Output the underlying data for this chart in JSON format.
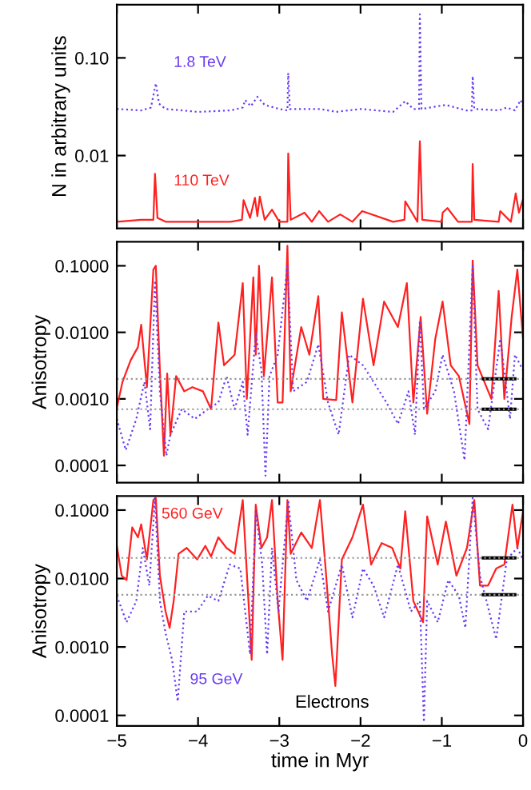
{
  "chart_data": [
    {
      "type": "line",
      "ylabel": "N in arbitrary units",
      "log": "y",
      "xlim": [
        -5,
        0
      ],
      "xticks": [
        -5,
        -4,
        -3,
        -2,
        -1,
        0
      ],
      "ylim": [
        0.0018,
        0.35
      ],
      "yticks": [
        {
          "value": 0.1,
          "label": "0.10"
        },
        {
          "value": 0.01,
          "label": "0.01"
        }
      ],
      "tick_labels": "y",
      "grid": false,
      "series": [
        {
          "name": "1.8 TeV",
          "color": "#6a3cf0",
          "line_style": "dotted",
          "x": [
            -5.0,
            -4.7,
            -4.58,
            -4.52,
            -4.48,
            -4.4,
            -4.0,
            -3.6,
            -3.45,
            -3.42,
            -3.35,
            -3.27,
            -3.18,
            -3.0,
            -2.9,
            -2.89,
            -2.87,
            -2.5,
            -2.3,
            -2.0,
            -1.6,
            -1.45,
            -1.35,
            -1.28,
            -1.27,
            -1.25,
            -0.95,
            -0.7,
            -0.63,
            -0.62,
            -0.6,
            -0.3,
            -0.2,
            -0.1,
            -0.03,
            0.0
          ],
          "values": [
            0.03,
            0.029,
            0.031,
            0.055,
            0.034,
            0.03,
            0.028,
            0.029,
            0.031,
            0.037,
            0.032,
            0.04,
            0.033,
            0.03,
            0.029,
            0.07,
            0.03,
            0.03,
            0.028,
            0.03,
            0.028,
            0.036,
            0.03,
            0.03,
            0.28,
            0.03,
            0.033,
            0.029,
            0.029,
            0.065,
            0.03,
            0.029,
            0.031,
            0.029,
            0.037,
            0.032
          ]
        },
        {
          "name": "110 TeV",
          "color": "#ff2020",
          "line_style": "solid",
          "x": [
            -5.0,
            -4.7,
            -4.55,
            -4.53,
            -4.5,
            -4.4,
            -4.0,
            -3.6,
            -3.46,
            -3.44,
            -3.36,
            -3.3,
            -3.27,
            -3.24,
            -3.18,
            -3.09,
            -3.0,
            -2.9,
            -2.89,
            -2.86,
            -2.69,
            -2.6,
            -2.51,
            -2.4,
            -2.25,
            -2.1,
            -1.98,
            -1.6,
            -1.46,
            -1.45,
            -1.3,
            -1.27,
            -1.24,
            -1.0,
            -0.99,
            -0.93,
            -0.8,
            -0.63,
            -0.62,
            -0.6,
            -0.3,
            -0.28,
            -0.15,
            -0.09,
            -0.05,
            0.0
          ],
          "values": [
            0.0021,
            0.0022,
            0.0022,
            0.0065,
            0.0023,
            0.0021,
            0.0021,
            0.0021,
            0.0022,
            0.0035,
            0.0023,
            0.0037,
            0.0024,
            0.0038,
            0.0022,
            0.0028,
            0.0021,
            0.0021,
            0.0105,
            0.0022,
            0.0026,
            0.0021,
            0.0027,
            0.0021,
            0.0025,
            0.0021,
            0.0027,
            0.0021,
            0.0022,
            0.0034,
            0.0021,
            0.014,
            0.0022,
            0.0021,
            0.0026,
            0.0029,
            0.0021,
            0.0021,
            0.0082,
            0.0022,
            0.0021,
            0.0027,
            0.0021,
            0.0041,
            0.0026,
            0.0036
          ]
        }
      ]
    },
    {
      "type": "line",
      "ylabel": "Anisotropy",
      "log": "y",
      "xlim": [
        -5,
        0
      ],
      "xticks": [
        -5,
        -4,
        -3,
        -2,
        -1,
        0
      ],
      "ylim": [
        5.5e-05,
        0.23
      ],
      "yticks": [
        {
          "value": 0.1,
          "label": "0.1000"
        },
        {
          "value": 0.01,
          "label": "0.0100"
        },
        {
          "value": 0.001,
          "label": "0.0010"
        },
        {
          "value": 0.0001,
          "label": "0.0001"
        }
      ],
      "tick_labels": "y",
      "grid": false,
      "ref_lines": [
        {
          "axis": "y",
          "value": 0.002,
          "color": "#999999",
          "line_style": "dotted"
        },
        {
          "axis": "y",
          "value": 0.0007,
          "color": "#999999",
          "line_style": "dotted"
        }
      ],
      "series": [
        {
          "color": "#ff2020",
          "line_style": "solid",
          "x": [
            -5.0,
            -4.93,
            -4.83,
            -4.74,
            -4.7,
            -4.63,
            -4.55,
            -4.52,
            -4.47,
            -4.42,
            -4.38,
            -4.34,
            -4.27,
            -4.17,
            -4.07,
            -3.94,
            -3.84,
            -3.75,
            -3.68,
            -3.55,
            -3.45,
            -3.4,
            -3.32,
            -3.29,
            -3.25,
            -3.19,
            -3.09,
            -3.02,
            -2.96,
            -2.9,
            -2.86,
            -2.73,
            -2.63,
            -2.52,
            -2.46,
            -2.3,
            -2.23,
            -2.1,
            -1.97,
            -1.84,
            -1.71,
            -1.54,
            -1.43,
            -1.35,
            -1.26,
            -1.18,
            -1.08,
            -0.99,
            -0.89,
            -0.79,
            -0.66,
            -0.62,
            -0.56,
            -0.39,
            -0.3,
            -0.23,
            -0.14,
            -0.07,
            0.0
          ],
          "values": [
            0.00073,
            0.0018,
            0.0038,
            0.006,
            0.013,
            0.0015,
            0.088,
            0.1,
            0.0027,
            0.00014,
            0.0024,
            0.00029,
            0.0022,
            0.0013,
            0.0015,
            0.0013,
            0.0007,
            0.014,
            0.0032,
            0.0046,
            0.055,
            0.001,
            0.067,
            0.0046,
            0.1,
            0.0022,
            0.067,
            0.00088,
            0.00088,
            0.2,
            0.0013,
            0.012,
            0.0046,
            0.035,
            0.001,
            0.00096,
            0.02,
            0.00088,
            0.032,
            0.0032,
            0.029,
            0.012,
            0.055,
            0.00088,
            0.017,
            0.0006,
            0.008,
            0.029,
            0.0032,
            0.0022,
            0.00042,
            0.12,
            0.0032,
            0.001,
            0.042,
            0.001,
            0.017,
            0.088,
            0.008
          ]
        },
        {
          "color": "#6a3cf0",
          "line_style": "dotted",
          "x": [
            -5.0,
            -4.89,
            -4.76,
            -4.66,
            -4.59,
            -4.53,
            -4.47,
            -4.39,
            -4.34,
            -4.2,
            -4.04,
            -3.88,
            -3.75,
            -3.65,
            -3.55,
            -3.45,
            -3.39,
            -3.29,
            -3.22,
            -3.17,
            -3.12,
            -3.02,
            -2.9,
            -2.83,
            -2.66,
            -2.52,
            -2.4,
            -2.27,
            -2.14,
            -1.97,
            -1.84,
            -1.68,
            -1.54,
            -1.41,
            -1.33,
            -1.27,
            -1.22,
            -1.08,
            -0.99,
            -0.85,
            -0.72,
            -0.62,
            -0.56,
            -0.43,
            -0.28,
            -0.16,
            -0.1,
            0.0
          ],
          "values": [
            0.0005,
            0.00017,
            0.0005,
            0.0018,
            0.00035,
            0.06,
            0.0013,
            0.00014,
            0.00029,
            0.0007,
            0.0005,
            0.0007,
            0.00088,
            0.0022,
            0.0007,
            0.0018,
            0.00029,
            0.0096,
            0.0027,
            7e-05,
            0.0022,
            0.0046,
            0.1,
            0.0013,
            0.0018,
            0.0066,
            0.00088,
            0.00029,
            0.0046,
            0.0032,
            0.0018,
            0.00088,
            0.00042,
            0.0013,
            0.00029,
            0.015,
            0.0007,
            0.0013,
            0.0046,
            0.0013,
            0.00012,
            0.1,
            0.0007,
            0.00035,
            0.008,
            0.0005,
            0.0046,
            0.0027
          ]
        },
        {
          "color": "#000000",
          "line_style": "solid",
          "x": [
            -0.49,
            -0.1
          ],
          "values": [
            0.002,
            0.002
          ]
        },
        {
          "color": "#000000",
          "line_style": "solid",
          "x": [
            -0.49,
            -0.1
          ],
          "values": [
            0.0007,
            0.0007
          ]
        }
      ]
    },
    {
      "type": "line",
      "ylabel": "Anisotropy",
      "xlabel": "time in Myr",
      "log": "y",
      "xlim": [
        -5,
        0
      ],
      "xticks": [
        {
          "value": -5,
          "label": "−5"
        },
        {
          "value": -4,
          "label": "−4"
        },
        {
          "value": -3,
          "label": "−3"
        },
        {
          "value": -2,
          "label": "−2"
        },
        {
          "value": -1,
          "label": "−1"
        },
        0
      ],
      "ylim": [
        7e-05,
        0.16
      ],
      "yticks": [
        {
          "value": 0.1,
          "label": "0.1000"
        },
        {
          "value": 0.01,
          "label": "0.0100"
        },
        {
          "value": 0.001,
          "label": "0.0010"
        },
        {
          "value": 0.0001,
          "label": "0.0001"
        }
      ],
      "grid": false,
      "annotations": [
        "Electrons"
      ],
      "ref_lines": [
        {
          "axis": "y",
          "value": 0.02,
          "color": "#999999",
          "line_style": "dotted"
        },
        {
          "axis": "y",
          "value": 0.0058,
          "color": "#999999",
          "line_style": "dotted"
        }
      ],
      "series": [
        {
          "name": "560 GeV",
          "color": "#ff2020",
          "line_style": "solid",
          "x": [
            -5.0,
            -4.94,
            -4.88,
            -4.81,
            -4.74,
            -4.7,
            -4.63,
            -4.55,
            -4.52,
            -4.47,
            -4.4,
            -4.35,
            -4.3,
            -4.24,
            -4.14,
            -4.01,
            -3.91,
            -3.84,
            -3.75,
            -3.65,
            -3.55,
            -3.45,
            -3.38,
            -3.34,
            -3.29,
            -3.22,
            -3.15,
            -3.09,
            -3.02,
            -2.96,
            -2.9,
            -2.86,
            -2.73,
            -2.6,
            -2.5,
            -2.43,
            -2.35,
            -2.31,
            -2.23,
            -2.1,
            -1.97,
            -1.87,
            -1.74,
            -1.61,
            -1.51,
            -1.45,
            -1.35,
            -1.23,
            -1.18,
            -1.05,
            -0.95,
            -0.82,
            -0.69,
            -0.6,
            -0.53,
            -0.43,
            -0.33,
            -0.23,
            -0.13,
            -0.07,
            0.0
          ],
          "values": [
            0.03,
            0.011,
            0.0095,
            0.056,
            0.04,
            0.062,
            0.019,
            0.14,
            0.15,
            0.011,
            0.0033,
            0.0019,
            0.0047,
            0.023,
            0.028,
            0.019,
            0.03,
            0.021,
            0.04,
            0.028,
            0.023,
            0.14,
            0.0047,
            0.00065,
            0.12,
            0.028,
            0.04,
            0.14,
            0.0047,
            0.00065,
            0.14,
            0.023,
            0.047,
            0.028,
            0.14,
            0.014,
            0.00078,
            0.00027,
            0.019,
            0.04,
            0.12,
            0.016,
            0.033,
            0.028,
            0.014,
            0.096,
            0.0047,
            0.0023,
            0.081,
            0.016,
            0.068,
            0.011,
            0.028,
            0.14,
            0.0079,
            0.0079,
            0.014,
            0.016,
            0.12,
            0.028,
            0.096
          ]
        },
        {
          "name": "95 GeV",
          "color": "#6a3cf0",
          "line_style": "dotted",
          "x": [
            -5.0,
            -4.88,
            -4.76,
            -4.68,
            -4.6,
            -4.53,
            -4.47,
            -4.4,
            -4.32,
            -4.25,
            -4.17,
            -4.01,
            -3.88,
            -3.75,
            -3.61,
            -3.48,
            -3.36,
            -3.29,
            -3.21,
            -3.15,
            -3.09,
            -3.01,
            -2.89,
            -2.79,
            -2.66,
            -2.5,
            -2.4,
            -2.23,
            -2.1,
            -1.97,
            -1.84,
            -1.71,
            -1.54,
            -1.38,
            -1.27,
            -1.22,
            -1.18,
            -1.05,
            -0.92,
            -0.79,
            -0.71,
            -0.62,
            -0.53,
            -0.33,
            -0.2,
            -0.07,
            0.0
          ],
          "values": [
            0.0056,
            0.0023,
            0.0047,
            0.028,
            0.0079,
            0.15,
            0.0047,
            0.0016,
            0.00065,
            0.00016,
            0.0033,
            0.0033,
            0.0056,
            0.0047,
            0.016,
            0.014,
            0.00078,
            0.096,
            0.016,
            0.00078,
            0.028,
            0.0033,
            0.14,
            0.0095,
            0.0047,
            0.019,
            0.0033,
            0.016,
            0.0027,
            0.014,
            0.0079,
            0.0027,
            0.016,
            0.0033,
            0.0047,
            8e-05,
            0.0047,
            0.0023,
            0.0095,
            0.0056,
            0.0019,
            0.15,
            0.011,
            0.0013,
            0.019,
            0.028,
            0.019
          ]
        },
        {
          "color": "#000000",
          "line_style": "solid",
          "x": [
            -0.49,
            -0.1
          ],
          "values": [
            0.02,
            0.02
          ]
        },
        {
          "color": "#000000",
          "line_style": "solid",
          "x": [
            -0.49,
            -0.1
          ],
          "values": [
            0.0058,
            0.0058
          ]
        }
      ]
    }
  ]
}
